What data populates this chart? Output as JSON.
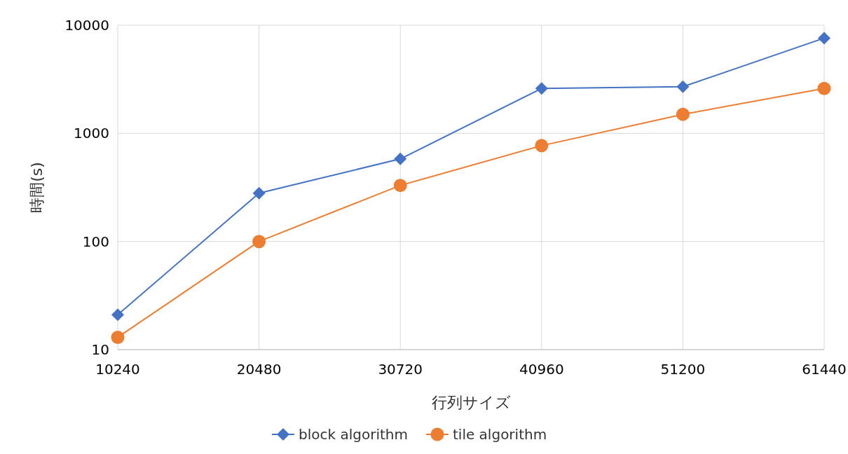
{
  "chart_data": {
    "type": "line",
    "xlabel": "行列サイズ",
    "ylabel": "時間(s)",
    "categories": [
      "10240",
      "20480",
      "30720",
      "40960",
      "51200",
      "61440"
    ],
    "series": [
      {
        "name": "block algorithm",
        "color": "#4472c4",
        "marker": "diamond",
        "values": [
          21,
          280,
          580,
          2600,
          2700,
          7600
        ]
      },
      {
        "name": "tile algorithm",
        "color": "#ed7d31",
        "marker": "circle",
        "values": [
          13,
          100,
          330,
          770,
          1500,
          2600
        ]
      }
    ],
    "log": "y",
    "ylim": [
      10,
      10000
    ],
    "yticks": [
      10,
      100,
      1000,
      10000
    ],
    "grid": true,
    "legend": "bottom",
    "line_style": "solid"
  }
}
